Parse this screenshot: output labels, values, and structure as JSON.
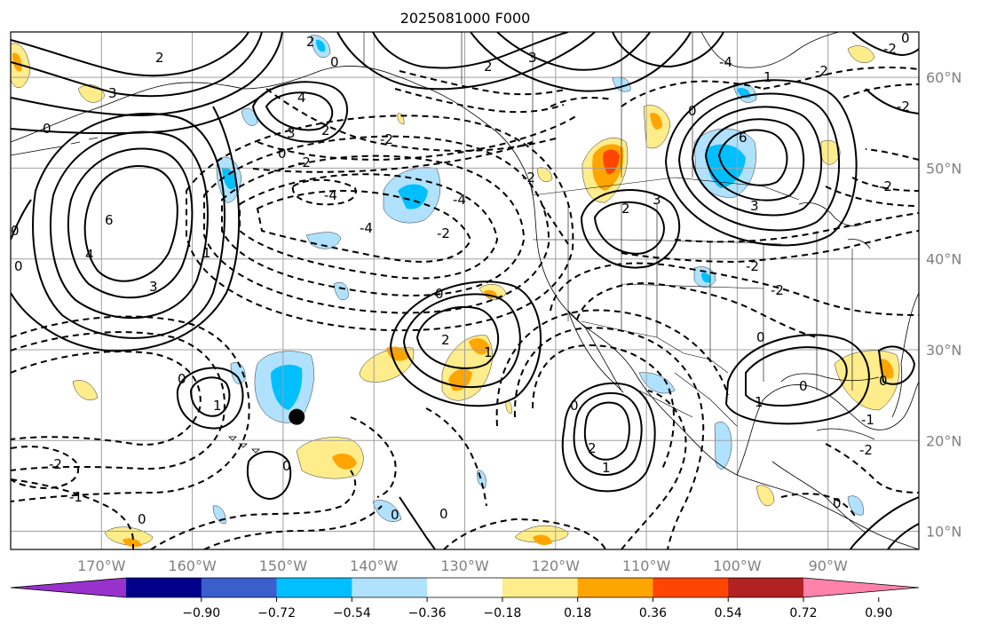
{
  "title": "2025081000 F000",
  "map": {
    "lon_range": [
      -180,
      -80
    ],
    "lat_range": [
      8,
      65
    ],
    "lat_ticks": [
      "60°N",
      "50°N",
      "40°N",
      "30°N",
      "20°N",
      "10°N"
    ],
    "lat_values": [
      60,
      50,
      40,
      30,
      20,
      10
    ],
    "lon_ticks": [
      "170°W",
      "160°W",
      "150°W",
      "140°W",
      "130°W",
      "120°W",
      "110°W",
      "100°W",
      "90°W"
    ],
    "lon_values": [
      -170,
      -160,
      -150,
      -140,
      -130,
      -120,
      -110,
      -100,
      -90
    ],
    "marker": {
      "lon": -148.5,
      "lat": 22.6,
      "color": "#000000"
    }
  },
  "colorbar": {
    "colors": [
      "#9932cc",
      "#00008b",
      "#3a5fcd",
      "#00bfff",
      "#b0e2ff",
      "#ffffff",
      "#ffec8b",
      "#ffa500",
      "#ff4500",
      "#b22222",
      "#ff82ab"
    ],
    "tick_labels": [
      "−0.90",
      "−0.72",
      "−0.54",
      "−0.36",
      "−0.18",
      "0.18",
      "0.36",
      "0.54",
      "0.72",
      "0.90"
    ]
  },
  "contour_labels": {
    "pos": [
      "6",
      "4",
      "3",
      "2",
      "1",
      "0"
    ],
    "neg": [
      "-1",
      "-2",
      "-4"
    ]
  }
}
